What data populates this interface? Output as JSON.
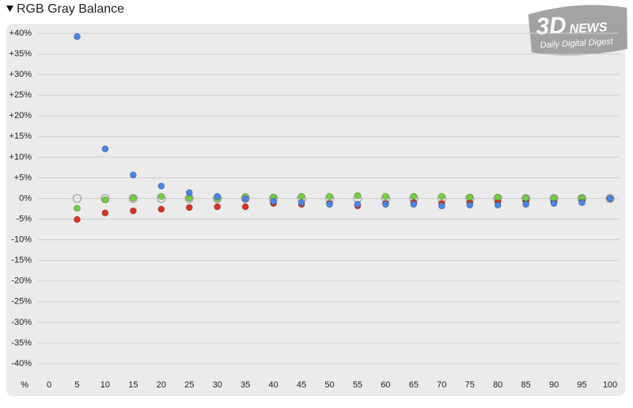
{
  "chart_data": {
    "type": "scatter",
    "title": "RGB Gray Balance",
    "watermark": [
      "3D",
      "NEWS",
      "Daily Digital Digest"
    ],
    "xlabel": "%",
    "x": [
      5,
      10,
      15,
      20,
      25,
      30,
      35,
      40,
      45,
      50,
      55,
      60,
      65,
      70,
      75,
      80,
      85,
      90,
      95,
      100
    ],
    "series": [
      {
        "color": "#b0b0b0",
        "hollow": true,
        "values": [
          0,
          0,
          0,
          0,
          0,
          0,
          0,
          0,
          0,
          0,
          0,
          0,
          0,
          0,
          0,
          0,
          0,
          0,
          0,
          0
        ]
      },
      {
        "color": "#d9321f",
        "values": [
          -5.1,
          -3.5,
          -3,
          -2.6,
          -2.2,
          -2,
          -2,
          -1.2,
          -1.4,
          -1.2,
          -1.8,
          -1.2,
          -1,
          -1.2,
          -1,
          -0.8,
          -0.8,
          -0.8,
          -0.5,
          0
        ]
      },
      {
        "color": "#6fd13c",
        "values": [
          -2.4,
          -0.3,
          0.1,
          0.5,
          0.1,
          0,
          0.5,
          0.3,
          0.5,
          0.5,
          0.7,
          0.5,
          0.5,
          0.5,
          0.3,
          0.3,
          0.1,
          0.1,
          0.1,
          0
        ]
      },
      {
        "color": "#4a86e8",
        "values": [
          39.2,
          12,
          5.7,
          3,
          1.4,
          0.5,
          -0.1,
          -0.7,
          -1,
          -1.4,
          -1.4,
          -1.4,
          -1.4,
          -1.8,
          -1.6,
          -1.6,
          -1.4,
          -1.2,
          -1,
          0
        ]
      }
    ],
    "xlim": [
      0,
      100
    ],
    "xticks": [
      0,
      5,
      10,
      15,
      20,
      25,
      30,
      35,
      40,
      45,
      50,
      55,
      60,
      65,
      70,
      75,
      80,
      85,
      90,
      95,
      100
    ],
    "ylim": [
      -40,
      40
    ],
    "yticks": [
      {
        "value": 40,
        "label": "+40%"
      },
      {
        "value": 35,
        "label": "+35%"
      },
      {
        "value": 30,
        "label": "+30%"
      },
      {
        "value": 25,
        "label": "+25%"
      },
      {
        "value": 20,
        "label": "+20%"
      },
      {
        "value": 15,
        "label": "+15%"
      },
      {
        "value": 10,
        "label": "+10%"
      },
      {
        "value": 5,
        "label": "+5%"
      },
      {
        "value": 0,
        "label": "0%"
      },
      {
        "value": -5,
        "label": "-5%"
      },
      {
        "value": -10,
        "label": "-10%"
      },
      {
        "value": -15,
        "label": "-15%"
      },
      {
        "value": -20,
        "label": "-20%"
      },
      {
        "value": -25,
        "label": "-25%"
      },
      {
        "value": -30,
        "label": "-30%"
      },
      {
        "value": -35,
        "label": "-35%"
      },
      {
        "value": -40,
        "label": "-40%"
      }
    ],
    "grid": true
  }
}
